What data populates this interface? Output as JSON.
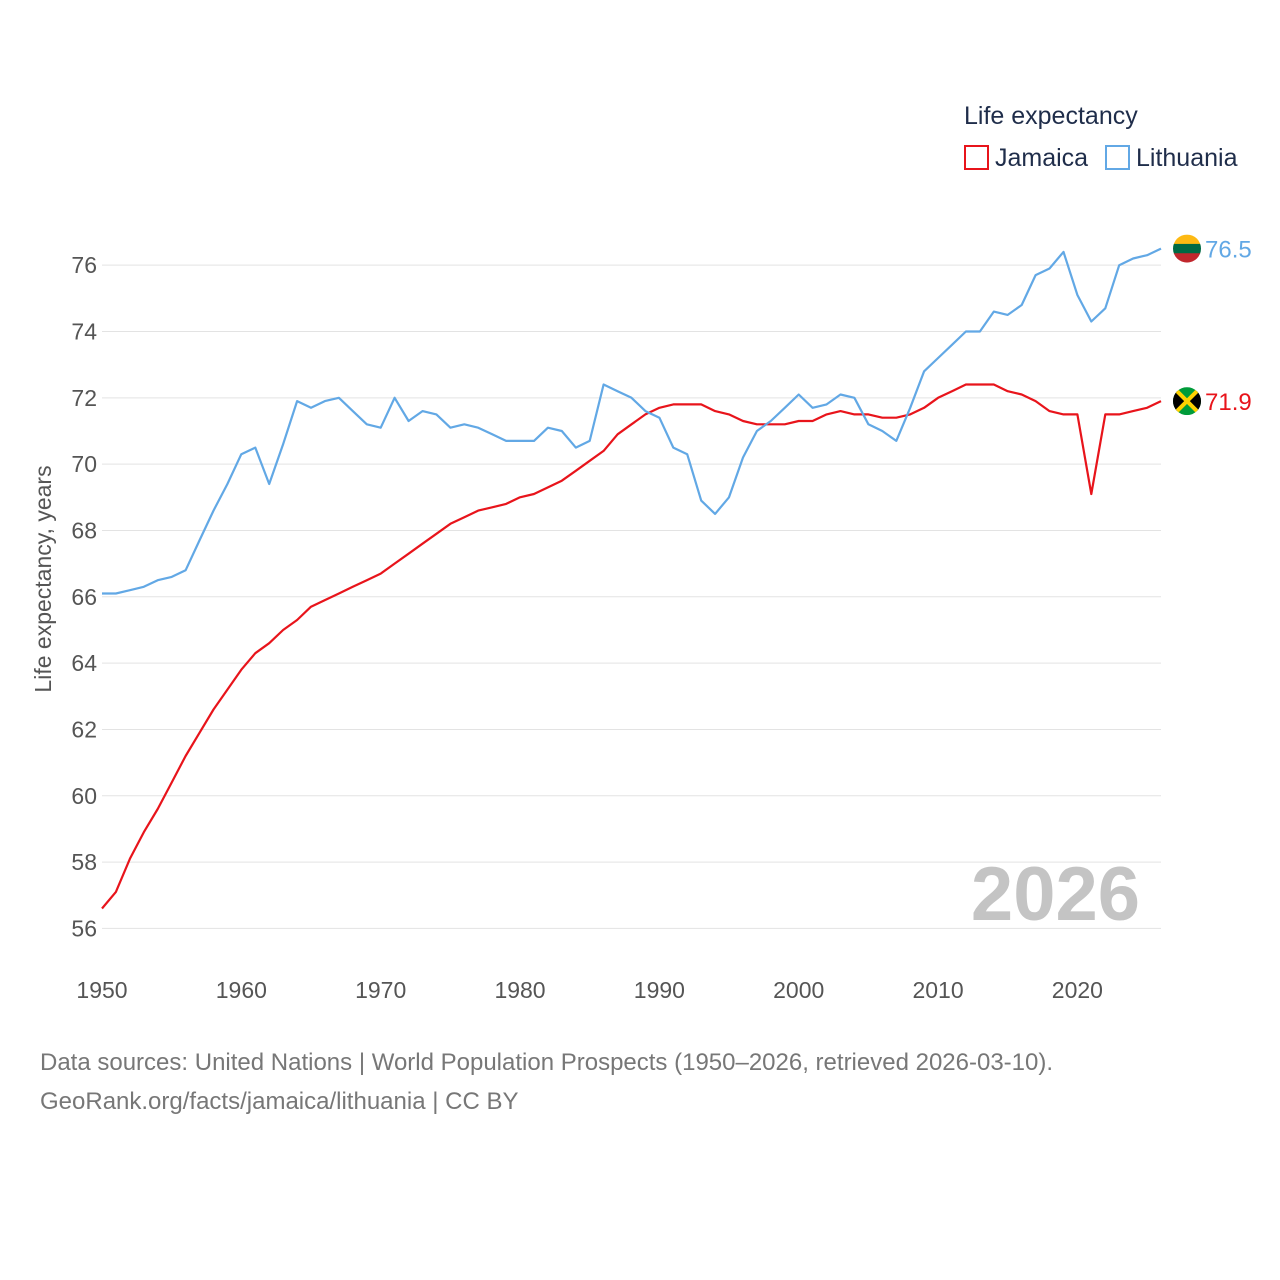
{
  "chart_data": {
    "type": "line",
    "title": "",
    "legend_title": "Life expectancy",
    "legend_position": "top-right",
    "xlabel": "",
    "ylabel": "Life expectancy, years",
    "xlim": [
      1950,
      2026
    ],
    "ylim": [
      55.5,
      77
    ],
    "x_ticks": [
      1950,
      1960,
      1970,
      1980,
      1990,
      2000,
      2010,
      2020
    ],
    "y_ticks": [
      56,
      58,
      60,
      62,
      64,
      66,
      68,
      70,
      72,
      74,
      76
    ],
    "grid": true,
    "year_label": "2026",
    "x": [
      1950,
      1951,
      1952,
      1953,
      1954,
      1955,
      1956,
      1957,
      1958,
      1959,
      1960,
      1961,
      1962,
      1963,
      1964,
      1965,
      1966,
      1967,
      1968,
      1969,
      1970,
      1971,
      1972,
      1973,
      1974,
      1975,
      1976,
      1977,
      1978,
      1979,
      1980,
      1981,
      1982,
      1983,
      1984,
      1985,
      1986,
      1987,
      1988,
      1989,
      1990,
      1991,
      1992,
      1993,
      1994,
      1995,
      1996,
      1997,
      1998,
      1999,
      2000,
      2001,
      2002,
      2003,
      2004,
      2005,
      2006,
      2007,
      2008,
      2009,
      2010,
      2011,
      2012,
      2013,
      2014,
      2015,
      2016,
      2017,
      2018,
      2019,
      2020,
      2021,
      2022,
      2023,
      2024,
      2025,
      2026
    ],
    "series": [
      {
        "name": "Jamaica",
        "color": "#e8141b",
        "end_label": "71.9",
        "flag": "jamaica-flag",
        "values": [
          56.6,
          57.1,
          58.1,
          58.9,
          59.6,
          60.4,
          61.2,
          61.9,
          62.6,
          63.2,
          63.8,
          64.3,
          64.6,
          65.0,
          65.3,
          65.7,
          65.9,
          66.1,
          66.3,
          66.5,
          66.7,
          67.0,
          67.3,
          67.6,
          67.9,
          68.2,
          68.4,
          68.6,
          68.7,
          68.8,
          69.0,
          69.1,
          69.3,
          69.5,
          69.8,
          70.1,
          70.4,
          70.9,
          71.2,
          71.5,
          71.7,
          71.8,
          71.8,
          71.8,
          71.6,
          71.5,
          71.3,
          71.2,
          71.2,
          71.2,
          71.3,
          71.3,
          71.5,
          71.6,
          71.5,
          71.5,
          71.4,
          71.4,
          71.5,
          71.7,
          72.0,
          72.2,
          72.4,
          72.4,
          72.4,
          72.2,
          72.1,
          71.9,
          71.6,
          71.5,
          71.5,
          69.1,
          71.5,
          71.5,
          71.6,
          71.7,
          71.9
        ]
      },
      {
        "name": "Lithuania",
        "color": "#62a8e5",
        "end_label": "76.5",
        "flag": "lithuania-flag",
        "values": [
          66.1,
          66.1,
          66.2,
          66.3,
          66.5,
          66.6,
          66.8,
          67.7,
          68.6,
          69.4,
          70.3,
          70.5,
          69.4,
          70.6,
          71.9,
          71.7,
          71.9,
          72.0,
          71.6,
          71.2,
          71.1,
          72.0,
          71.3,
          71.6,
          71.5,
          71.1,
          71.2,
          71.1,
          70.9,
          70.7,
          70.7,
          70.7,
          71.1,
          71.0,
          70.5,
          70.7,
          72.4,
          72.2,
          72.0,
          71.6,
          71.4,
          70.5,
          70.3,
          68.9,
          68.5,
          69.0,
          70.2,
          71.0,
          71.3,
          71.7,
          72.1,
          71.7,
          71.8,
          72.1,
          72.0,
          71.2,
          71.0,
          70.7,
          71.7,
          72.8,
          73.2,
          73.6,
          74.0,
          74.0,
          74.6,
          74.5,
          74.8,
          75.7,
          75.9,
          76.4,
          75.1,
          74.3,
          74.7,
          76.0,
          76.2,
          76.3,
          76.5
        ]
      }
    ]
  },
  "footer": {
    "line1": "Data sources: United Nations | World Population Prospects (1950–2026, retrieved 2026-03-10).",
    "line2": "GeoRank.org/facts/jamaica/lithuania | CC BY"
  }
}
